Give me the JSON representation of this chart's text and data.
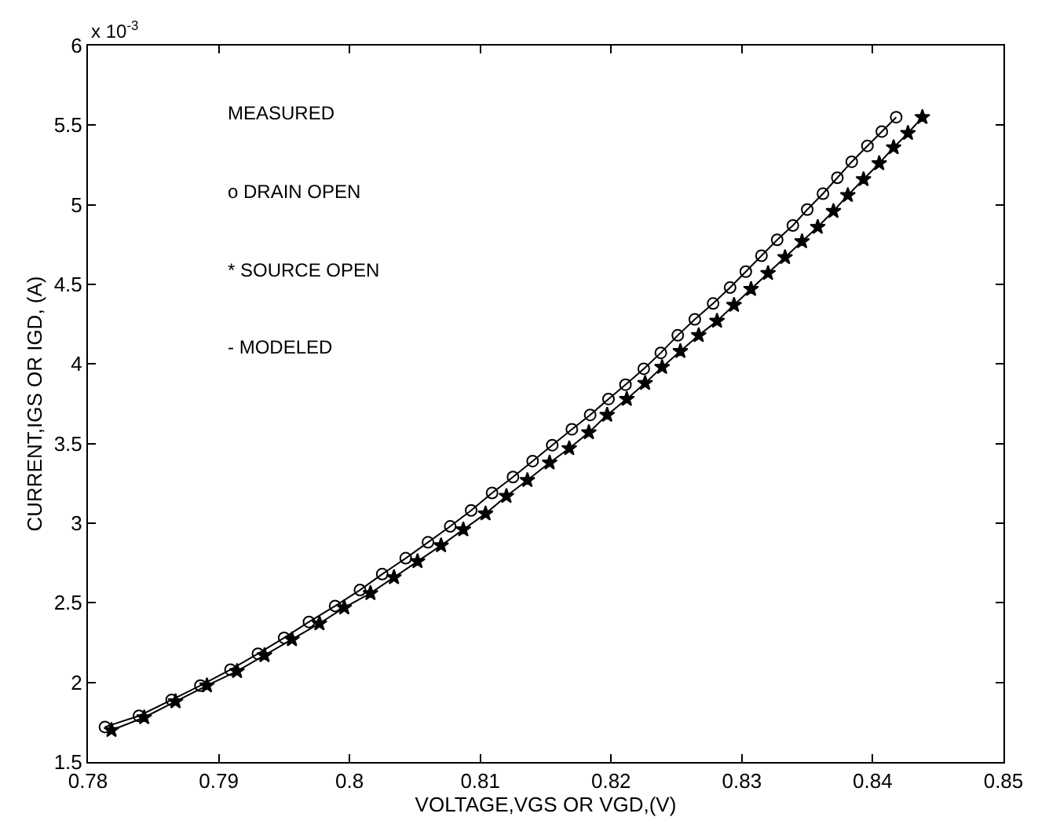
{
  "chart_data": {
    "type": "line",
    "xlabel": "VOLTAGE,VGS OR VGD,(V)",
    "ylabel": "CURRENT,IGS OR IGD, (A)",
    "annotations": [
      "MEASURED",
      "o DRAIN OPEN",
      "* SOURCE OPEN",
      "- MODELED",
      "x 10$^{-3}$"
    ],
    "xlim": [
      0.78,
      0.85
    ],
    "xticks": [
      0.78,
      0.79,
      0.8,
      0.81,
      0.82,
      0.83,
      0.84,
      0.85
    ],
    "ylim": [
      1.5,
      6
    ],
    "yticks": [
      1.5,
      2,
      2.5,
      3,
      3.5,
      4,
      4.5,
      5,
      5.5,
      6
    ],
    "grid": false,
    "line_style": "solid",
    "series": [
      {
        "color": "#000000",
        "marker": "circle",
        "x": [
          0.7813,
          0.7839,
          0.7864,
          0.7886,
          0.7909,
          0.793,
          0.795,
          0.7969,
          0.7989,
          0.8008,
          0.8025,
          0.8043,
          0.806,
          0.8077,
          0.8093,
          0.8109,
          0.8125,
          0.814,
          0.8155,
          0.817,
          0.8184,
          0.8198,
          0.8211,
          0.8225,
          0.8238,
          0.8251,
          0.8264,
          0.8278,
          0.8291,
          0.8303,
          0.8315,
          0.8327,
          0.8339,
          0.835,
          0.8362,
          0.8373,
          0.8384,
          0.8396,
          0.8407,
          0.8418
        ],
        "values": [
          1.72,
          1.79,
          1.89,
          1.98,
          2.08,
          2.18,
          2.28,
          2.38,
          2.48,
          2.58,
          2.68,
          2.78,
          2.88,
          2.98,
          3.08,
          3.19,
          3.29,
          3.39,
          3.49,
          3.59,
          3.68,
          3.78,
          3.87,
          3.97,
          4.07,
          4.18,
          4.28,
          4.38,
          4.48,
          4.58,
          4.68,
          4.78,
          4.87,
          4.97,
          5.07,
          5.17,
          5.27,
          5.37,
          5.46,
          5.55
        ]
      },
      {
        "color": "#000000",
        "marker": "star",
        "x": [
          0.7818,
          0.7843,
          0.7867,
          0.7891,
          0.7914,
          0.7935,
          0.7956,
          0.7977,
          0.7996,
          0.8016,
          0.8034,
          0.8052,
          0.807,
          0.8087,
          0.8104,
          0.812,
          0.8136,
          0.8153,
          0.8168,
          0.8183,
          0.8197,
          0.8212,
          0.8226,
          0.8239,
          0.8253,
          0.8267,
          0.8281,
          0.8294,
          0.8307,
          0.832,
          0.8333,
          0.8346,
          0.8358,
          0.837,
          0.8381,
          0.8393,
          0.8405,
          0.8416,
          0.8427,
          0.8438
        ],
        "values": [
          1.7,
          1.78,
          1.88,
          1.98,
          2.07,
          2.17,
          2.27,
          2.37,
          2.47,
          2.56,
          2.66,
          2.76,
          2.86,
          2.96,
          3.06,
          3.17,
          3.27,
          3.38,
          3.47,
          3.57,
          3.68,
          3.78,
          3.88,
          3.98,
          4.08,
          4.18,
          4.27,
          4.37,
          4.47,
          4.57,
          4.67,
          4.77,
          4.86,
          4.96,
          5.06,
          5.16,
          5.26,
          5.36,
          5.45,
          5.55
        ]
      }
    ]
  }
}
